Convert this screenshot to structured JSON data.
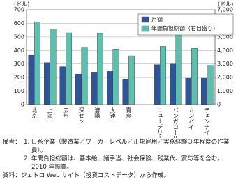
{
  "chart_data": {
    "type": "bar",
    "ylabel": "(ドル)",
    "y2label": "(ドル)",
    "categories": [
      "北京",
      "上海",
      "広州",
      "深セン",
      "瀋陽",
      "大連",
      "青島",
      null,
      "ニューデリー",
      "バンガロール",
      "ムンバイ",
      "チェンナイ"
    ],
    "series": [
      {
        "name": "月額",
        "color": "#2f5597",
        "values": [
          365,
          310,
          280,
          225,
          235,
          245,
          185,
          null,
          295,
          300,
          195,
          195
        ]
      },
      {
        "name": "年間負担総額（右目盛り）",
        "color": "#5fbfae",
        "axis": "y2",
        "values": [
          6100,
          5600,
          5300,
          4250,
          5250,
          4050,
          3600,
          null,
          4300,
          5250,
          4150,
          2900
        ]
      }
    ],
    "ylim": [
      0,
      700
    ],
    "yticks": [
      0,
      100,
      200,
      300,
      400,
      500,
      600,
      700
    ],
    "y2lim": [
      0,
      7000
    ],
    "y2ticks": [
      0,
      {
        "value": 1000,
        "label": "1,000"
      },
      {
        "value": 2000,
        "label": "2,000"
      },
      {
        "value": 3000,
        "label": "3,000"
      },
      {
        "value": 4000,
        "label": "4,000"
      },
      {
        "value": 5000,
        "label": "5,000"
      },
      {
        "value": 6000,
        "label": "6,000"
      },
      {
        "value": 7000,
        "label": "7,000"
      }
    ],
    "grid": true,
    "legend": "upper right"
  },
  "notes": {
    "label": "備考：",
    "items": [
      "1. 日系企業（製造業／ワーカーレベル／正規雇用／実務経験３年程度の作業員）。",
      "2. 年間負担総額は、基本給、諸手当、社会保険、残業代、賞与等を含む。2010 年調査。"
    ]
  },
  "source": "資料：ジェトロ Web サイト（投資コストデータ）から作成。"
}
